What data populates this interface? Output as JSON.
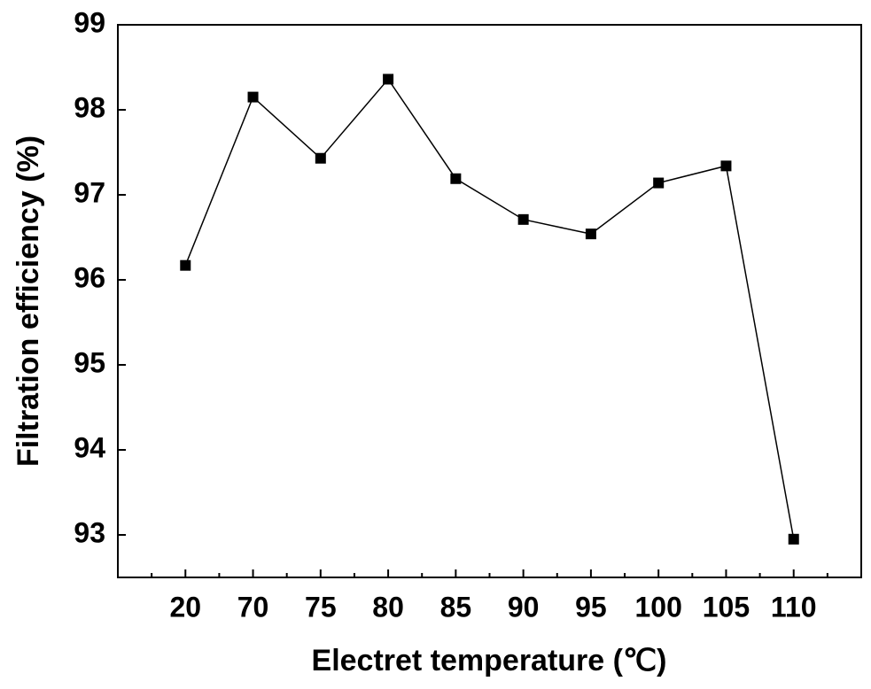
{
  "chart_data": {
    "type": "line",
    "x_label": "Electret temperature (℃)",
    "y_label": "Filtration efficiency (%)",
    "categories": [
      "20",
      "70",
      "75",
      "80",
      "85",
      "90",
      "95",
      "100",
      "105",
      "110"
    ],
    "values": [
      96.17,
      98.15,
      97.43,
      98.36,
      97.19,
      96.71,
      96.54,
      97.14,
      97.34,
      92.95
    ],
    "color": "#000000",
    "marker": "square",
    "ylim": [
      92.5,
      99
    ],
    "yticks": [
      93,
      94,
      95,
      96,
      97,
      98,
      99
    ],
    "grid": false
  }
}
